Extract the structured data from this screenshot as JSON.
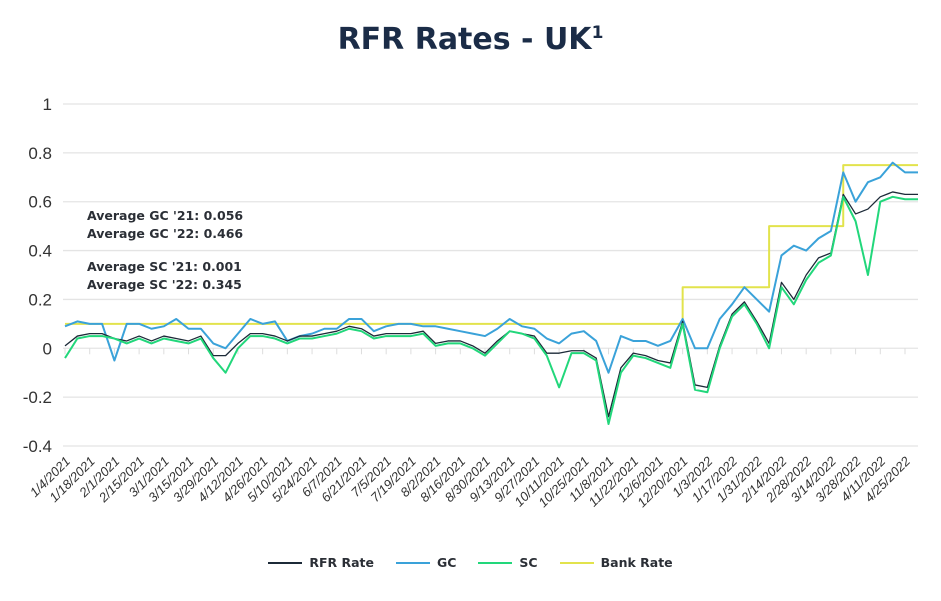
{
  "chart_data": {
    "type": "line",
    "title": "RFR Rates - UK",
    "title_superscript": "1",
    "ylim": [
      -0.4,
      1
    ],
    "yticks": [
      "1",
      "0.8",
      "0.6",
      "0.4",
      "0.2",
      "0",
      "-0.2",
      "-0.4"
    ],
    "ytick_values": [
      1,
      0.8,
      0.6,
      0.4,
      0.2,
      0,
      -0.2,
      -0.4
    ],
    "grid": "horizontal",
    "legend_position": "bottom",
    "x": [
      "1/4/2021",
      "1/11/2021",
      "1/18/2021",
      "1/25/2021",
      "2/1/2021",
      "2/8/2021",
      "2/15/2021",
      "2/22/2021",
      "3/1/2021",
      "3/8/2021",
      "3/15/2021",
      "3/22/2021",
      "3/29/2021",
      "4/5/2021",
      "4/12/2021",
      "4/19/2021",
      "4/26/2021",
      "5/3/2021",
      "5/10/2021",
      "5/17/2021",
      "5/24/2021",
      "5/31/2021",
      "6/7/2021",
      "6/14/2021",
      "6/21/2021",
      "6/28/2021",
      "7/5/2021",
      "7/12/2021",
      "7/19/2021",
      "7/26/2021",
      "8/2/2021",
      "8/9/2021",
      "8/16/2021",
      "8/23/2021",
      "8/30/2021",
      "9/6/2021",
      "9/13/2021",
      "9/20/2021",
      "9/27/2021",
      "10/4/2021",
      "10/11/2021",
      "10/18/2021",
      "10/25/2021",
      "11/1/2021",
      "11/8/2021",
      "11/15/2021",
      "11/22/2021",
      "11/29/2021",
      "12/6/2021",
      "12/13/2021",
      "12/20/2021",
      "12/27/2021",
      "1/3/2022",
      "1/10/2022",
      "1/17/2022",
      "1/24/2022",
      "1/31/2022",
      "2/7/2022",
      "2/14/2022",
      "2/21/2022",
      "2/28/2022",
      "3/7/2022",
      "3/14/2022",
      "3/21/2022",
      "3/28/2022",
      "4/4/2022",
      "4/11/2022",
      "4/18/2022",
      "4/25/2022"
    ],
    "xtick_labels": [
      "1/4/2021",
      "1/18/2021",
      "2/1/2021",
      "2/15/2021",
      "3/1/2021",
      "3/15/2021",
      "3/29/2021",
      "4/12/2021",
      "4/26/2021",
      "5/10/2021",
      "5/24/2021",
      "6/7/2021",
      "6/21/2021",
      "7/5/2021",
      "7/19/2021",
      "8/2/2021",
      "8/16/2021",
      "8/30/2021",
      "9/13/2021",
      "9/27/2021",
      "10/11/2021",
      "10/25/2021",
      "11/8/2021",
      "11/22/2021",
      "12/6/2021",
      "12/20/2021",
      "1/3/2022",
      "1/17/2022",
      "1/31/2022",
      "2/14/2022",
      "2/28/2022",
      "3/14/2022",
      "3/28/2022",
      "4/11/2022",
      "4/25/2022"
    ],
    "series": [
      {
        "name": "Bank Rate",
        "color": "#e2e34c",
        "step": true,
        "values": [
          0.1,
          0.1,
          0.1,
          0.1,
          0.1,
          0.1,
          0.1,
          0.1,
          0.1,
          0.1,
          0.1,
          0.1,
          0.1,
          0.1,
          0.1,
          0.1,
          0.1,
          0.1,
          0.1,
          0.1,
          0.1,
          0.1,
          0.1,
          0.1,
          0.1,
          0.1,
          0.1,
          0.1,
          0.1,
          0.1,
          0.1,
          0.1,
          0.1,
          0.1,
          0.1,
          0.1,
          0.1,
          0.1,
          0.1,
          0.1,
          0.1,
          0.1,
          0.1,
          0.1,
          0.1,
          0.1,
          0.1,
          0.1,
          0.1,
          0.1,
          0.25,
          0.25,
          0.25,
          0.25,
          0.25,
          0.25,
          0.25,
          0.5,
          0.5,
          0.5,
          0.5,
          0.5,
          0.5,
          0.75,
          0.75,
          0.75,
          0.75,
          0.75,
          0.75
        ]
      },
      {
        "name": "GC",
        "color": "#3aa2d9",
        "values": [
          0.09,
          0.11,
          0.1,
          0.1,
          -0.05,
          0.1,
          0.1,
          0.08,
          0.09,
          0.12,
          0.08,
          0.08,
          0.02,
          0.0,
          0.06,
          0.12,
          0.1,
          0.11,
          0.03,
          0.05,
          0.06,
          0.08,
          0.08,
          0.12,
          0.12,
          0.07,
          0.09,
          0.1,
          0.1,
          0.09,
          0.09,
          0.08,
          0.07,
          0.06,
          0.05,
          0.08,
          0.12,
          0.09,
          0.08,
          0.04,
          0.02,
          0.06,
          0.07,
          0.03,
          -0.1,
          0.05,
          0.03,
          0.03,
          0.01,
          0.03,
          0.12,
          0.0,
          0.0,
          0.12,
          0.18,
          0.25,
          0.2,
          0.15,
          0.38,
          0.42,
          0.4,
          0.45,
          0.48,
          0.72,
          0.6,
          0.68,
          0.7,
          0.76,
          0.72
        ]
      },
      {
        "name": "RFR Rate",
        "color": "#1c2a38",
        "values": [
          0.01,
          0.05,
          0.06,
          0.06,
          0.04,
          0.03,
          0.05,
          0.03,
          0.05,
          0.04,
          0.03,
          0.05,
          -0.03,
          -0.03,
          0.02,
          0.06,
          0.06,
          0.05,
          0.03,
          0.05,
          0.05,
          0.06,
          0.07,
          0.09,
          0.08,
          0.05,
          0.06,
          0.06,
          0.06,
          0.07,
          0.02,
          0.03,
          0.03,
          0.01,
          -0.02,
          0.03,
          0.07,
          0.06,
          0.05,
          -0.02,
          -0.02,
          -0.01,
          -0.01,
          -0.04,
          -0.28,
          -0.08,
          -0.02,
          -0.03,
          -0.05,
          -0.06,
          0.11,
          -0.15,
          -0.16,
          0.01,
          0.14,
          0.19,
          0.11,
          0.02,
          0.27,
          0.2,
          0.3,
          0.37,
          0.39,
          0.63,
          0.55,
          0.57,
          0.62,
          0.64,
          0.63
        ]
      },
      {
        "name": "SC",
        "color": "#22d77b",
        "values": [
          -0.04,
          0.04,
          0.05,
          0.05,
          0.04,
          0.02,
          0.04,
          0.02,
          0.04,
          0.03,
          0.02,
          0.04,
          -0.04,
          -0.1,
          0.0,
          0.05,
          0.05,
          0.04,
          0.02,
          0.04,
          0.04,
          0.05,
          0.06,
          0.08,
          0.07,
          0.04,
          0.05,
          0.05,
          0.05,
          0.06,
          0.01,
          0.02,
          0.02,
          0.0,
          -0.03,
          0.02,
          0.07,
          0.06,
          0.04,
          -0.03,
          -0.16,
          -0.02,
          -0.02,
          -0.05,
          -0.31,
          -0.1,
          -0.03,
          -0.04,
          -0.06,
          -0.08,
          0.1,
          -0.17,
          -0.18,
          0.0,
          0.13,
          0.18,
          0.1,
          0.0,
          0.25,
          0.18,
          0.28,
          0.35,
          0.38,
          0.62,
          0.52,
          0.3,
          0.6,
          0.62,
          0.61
        ]
      }
    ],
    "annotations": [
      "Average GC '21: 0.056",
      "Average GC '22: 0.466",
      "Average SC '21: 0.001",
      "Average SC '22: 0.345"
    ]
  },
  "legend": [
    {
      "label": "RFR Rate",
      "color": "#1c2a38"
    },
    {
      "label": "GC",
      "color": "#3aa2d9"
    },
    {
      "label": "SC",
      "color": "#22d77b"
    },
    {
      "label": "Bank Rate",
      "color": "#e2e34c"
    }
  ]
}
